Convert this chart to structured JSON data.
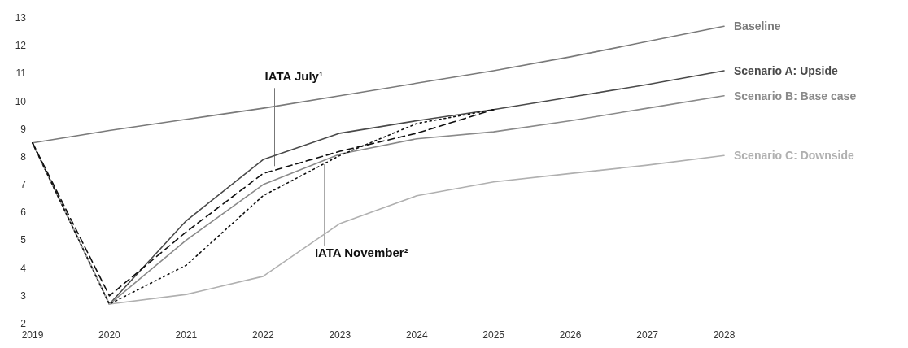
{
  "chart_data": {
    "type": "line",
    "x": [
      2019,
      2020,
      2021,
      2022,
      2023,
      2024,
      2025,
      2026,
      2027,
      2028
    ],
    "xlim": [
      2019,
      2028
    ],
    "xticks": [
      2019,
      2020,
      2021,
      2022,
      2023,
      2024,
      2025,
      2026,
      2027,
      2028
    ],
    "ylim": [
      2,
      13
    ],
    "yticks": [
      2,
      3,
      4,
      5,
      6,
      7,
      8,
      9,
      10,
      11,
      12,
      13
    ],
    "grid": false,
    "legend": false,
    "marker": "none",
    "series": [
      {
        "name": "Baseline",
        "color": "#7a7a7a",
        "line_style": "solid",
        "values": [
          8.5,
          8.95,
          9.35,
          9.75,
          10.2,
          10.65,
          11.1,
          11.6,
          12.15,
          12.7
        ]
      },
      {
        "name": "Scenario A: Upside",
        "color": "#4a4a4a",
        "line_style": "solid",
        "values": [
          8.5,
          2.7,
          5.7,
          7.9,
          8.85,
          9.3,
          9.7,
          10.15,
          10.6,
          11.1
        ]
      },
      {
        "name": "Scenario B: Base case",
        "color": "#8a8a8a",
        "line_style": "solid",
        "values": [
          8.5,
          2.7,
          5.0,
          7.0,
          8.1,
          8.65,
          8.9,
          9.3,
          9.75,
          10.2
        ]
      },
      {
        "name": "Scenario C: Downside",
        "color": "#b0b0b0",
        "line_style": "solid",
        "values": [
          8.5,
          2.7,
          3.05,
          3.7,
          5.6,
          6.6,
          7.1,
          7.4,
          7.7,
          8.05
        ]
      },
      {
        "color": "#111111",
        "line_style": "dashed",
        "values": [
          8.5,
          3.0,
          5.3,
          7.4,
          8.2,
          8.85,
          9.7,
          null,
          null,
          null
        ]
      },
      {
        "color": "#111111",
        "line_style": "dotted",
        "values": [
          8.5,
          2.7,
          4.1,
          6.6,
          8.05,
          9.2,
          9.7,
          null,
          null,
          null
        ]
      }
    ],
    "annotations": [
      {
        "text": "IATA July¹",
        "x": 2022.15,
        "y": 7.55
      },
      {
        "text": "IATA November²",
        "x": 2022.8,
        "y": 7.85
      }
    ]
  }
}
